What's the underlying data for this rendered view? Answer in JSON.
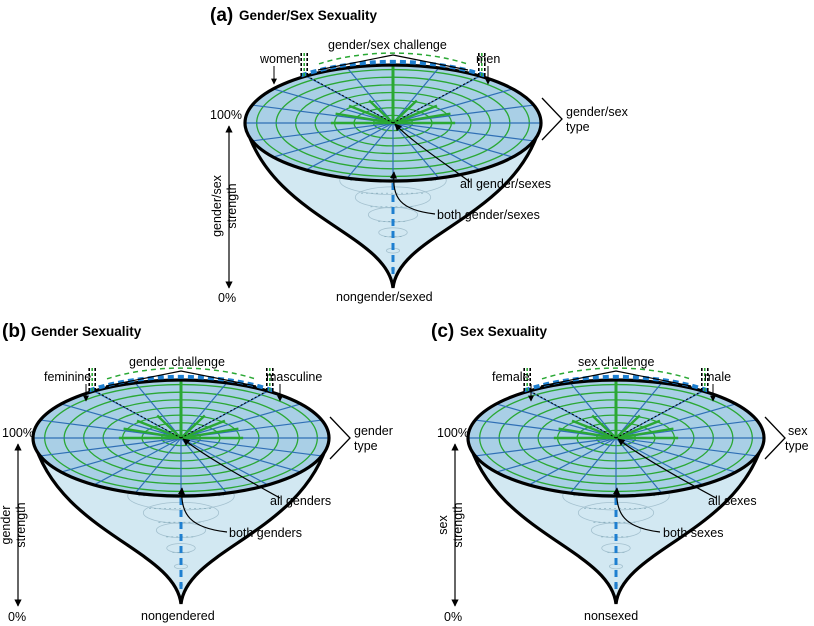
{
  "colors": {
    "disk_fill": "#a9cfe6",
    "cone_fill": "#d2e8f2",
    "ring_green": "#2aa834",
    "spoke_blue": "#2f6fb5",
    "axis_dash_blue": "#1e7fd0",
    "outline": "#000000",
    "inner_rim": "#8a8a8a"
  },
  "panels": [
    {
      "id": "a",
      "tag": "(a)",
      "title": "Gender/Sex Sexuality",
      "challenge": "gender/sex challenge",
      "left_end": "women",
      "right_end": "men",
      "type_line1": "gender/sex",
      "type_line2": "type",
      "all_label": "all gender/sexes",
      "both_label": "both gender/sexes",
      "bottom": "nongender/sexed",
      "strength_line1": "gender/sex",
      "strength_line2": "strength",
      "top_pct": "100%",
      "bottom_pct": "0%"
    },
    {
      "id": "b",
      "tag": "(b)",
      "title": "Gender Sexuality",
      "challenge": "gender challenge",
      "left_end": "feminine",
      "right_end": "masculine",
      "type_line1": "gender",
      "type_line2": "type",
      "all_label": "all genders",
      "both_label": "both genders",
      "bottom": "nongendered",
      "strength_line1": "gender",
      "strength_line2": "strength",
      "top_pct": "100%",
      "bottom_pct": "0%"
    },
    {
      "id": "c",
      "tag": "(c)",
      "title": "Sex Sexuality",
      "challenge": "sex challenge",
      "left_end": "female",
      "right_end": "male",
      "type_line1": "sex",
      "type_line2": "type",
      "all_label": "all sexes",
      "both_label": "both sexes",
      "bottom": "nonsexed",
      "strength_line1": "sex",
      "strength_line2": "strength",
      "top_pct": "100%",
      "bottom_pct": "0%"
    }
  ]
}
